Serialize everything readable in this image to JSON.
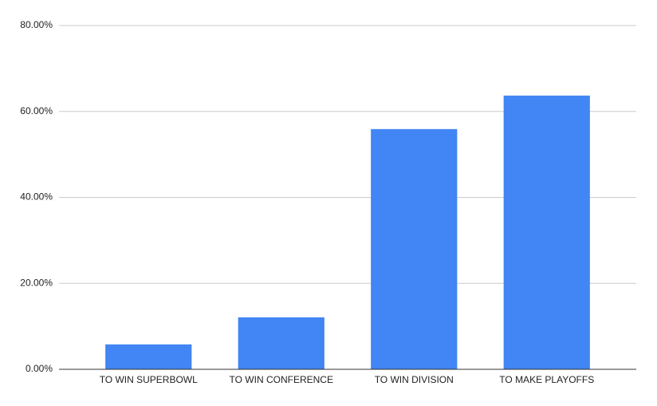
{
  "chart_data": {
    "type": "bar",
    "categories": [
      "TO WIN SUPERBOWL",
      "TO WIN CONFERENCE",
      "TO WIN DIVISION",
      "TO MAKE PLAYOFFS"
    ],
    "values": [
      5.8,
      12.1,
      55.9,
      63.7
    ],
    "color": "#4285f4",
    "ylim": [
      0,
      80
    ],
    "yticks": [
      {
        "value": 0,
        "label": "0.00%"
      },
      {
        "value": 20,
        "label": "20.00%"
      },
      {
        "value": 40,
        "label": "40.00%"
      },
      {
        "value": 60,
        "label": "60.00%"
      },
      {
        "value": 80,
        "label": "80.00%"
      }
    ],
    "grid": true
  }
}
